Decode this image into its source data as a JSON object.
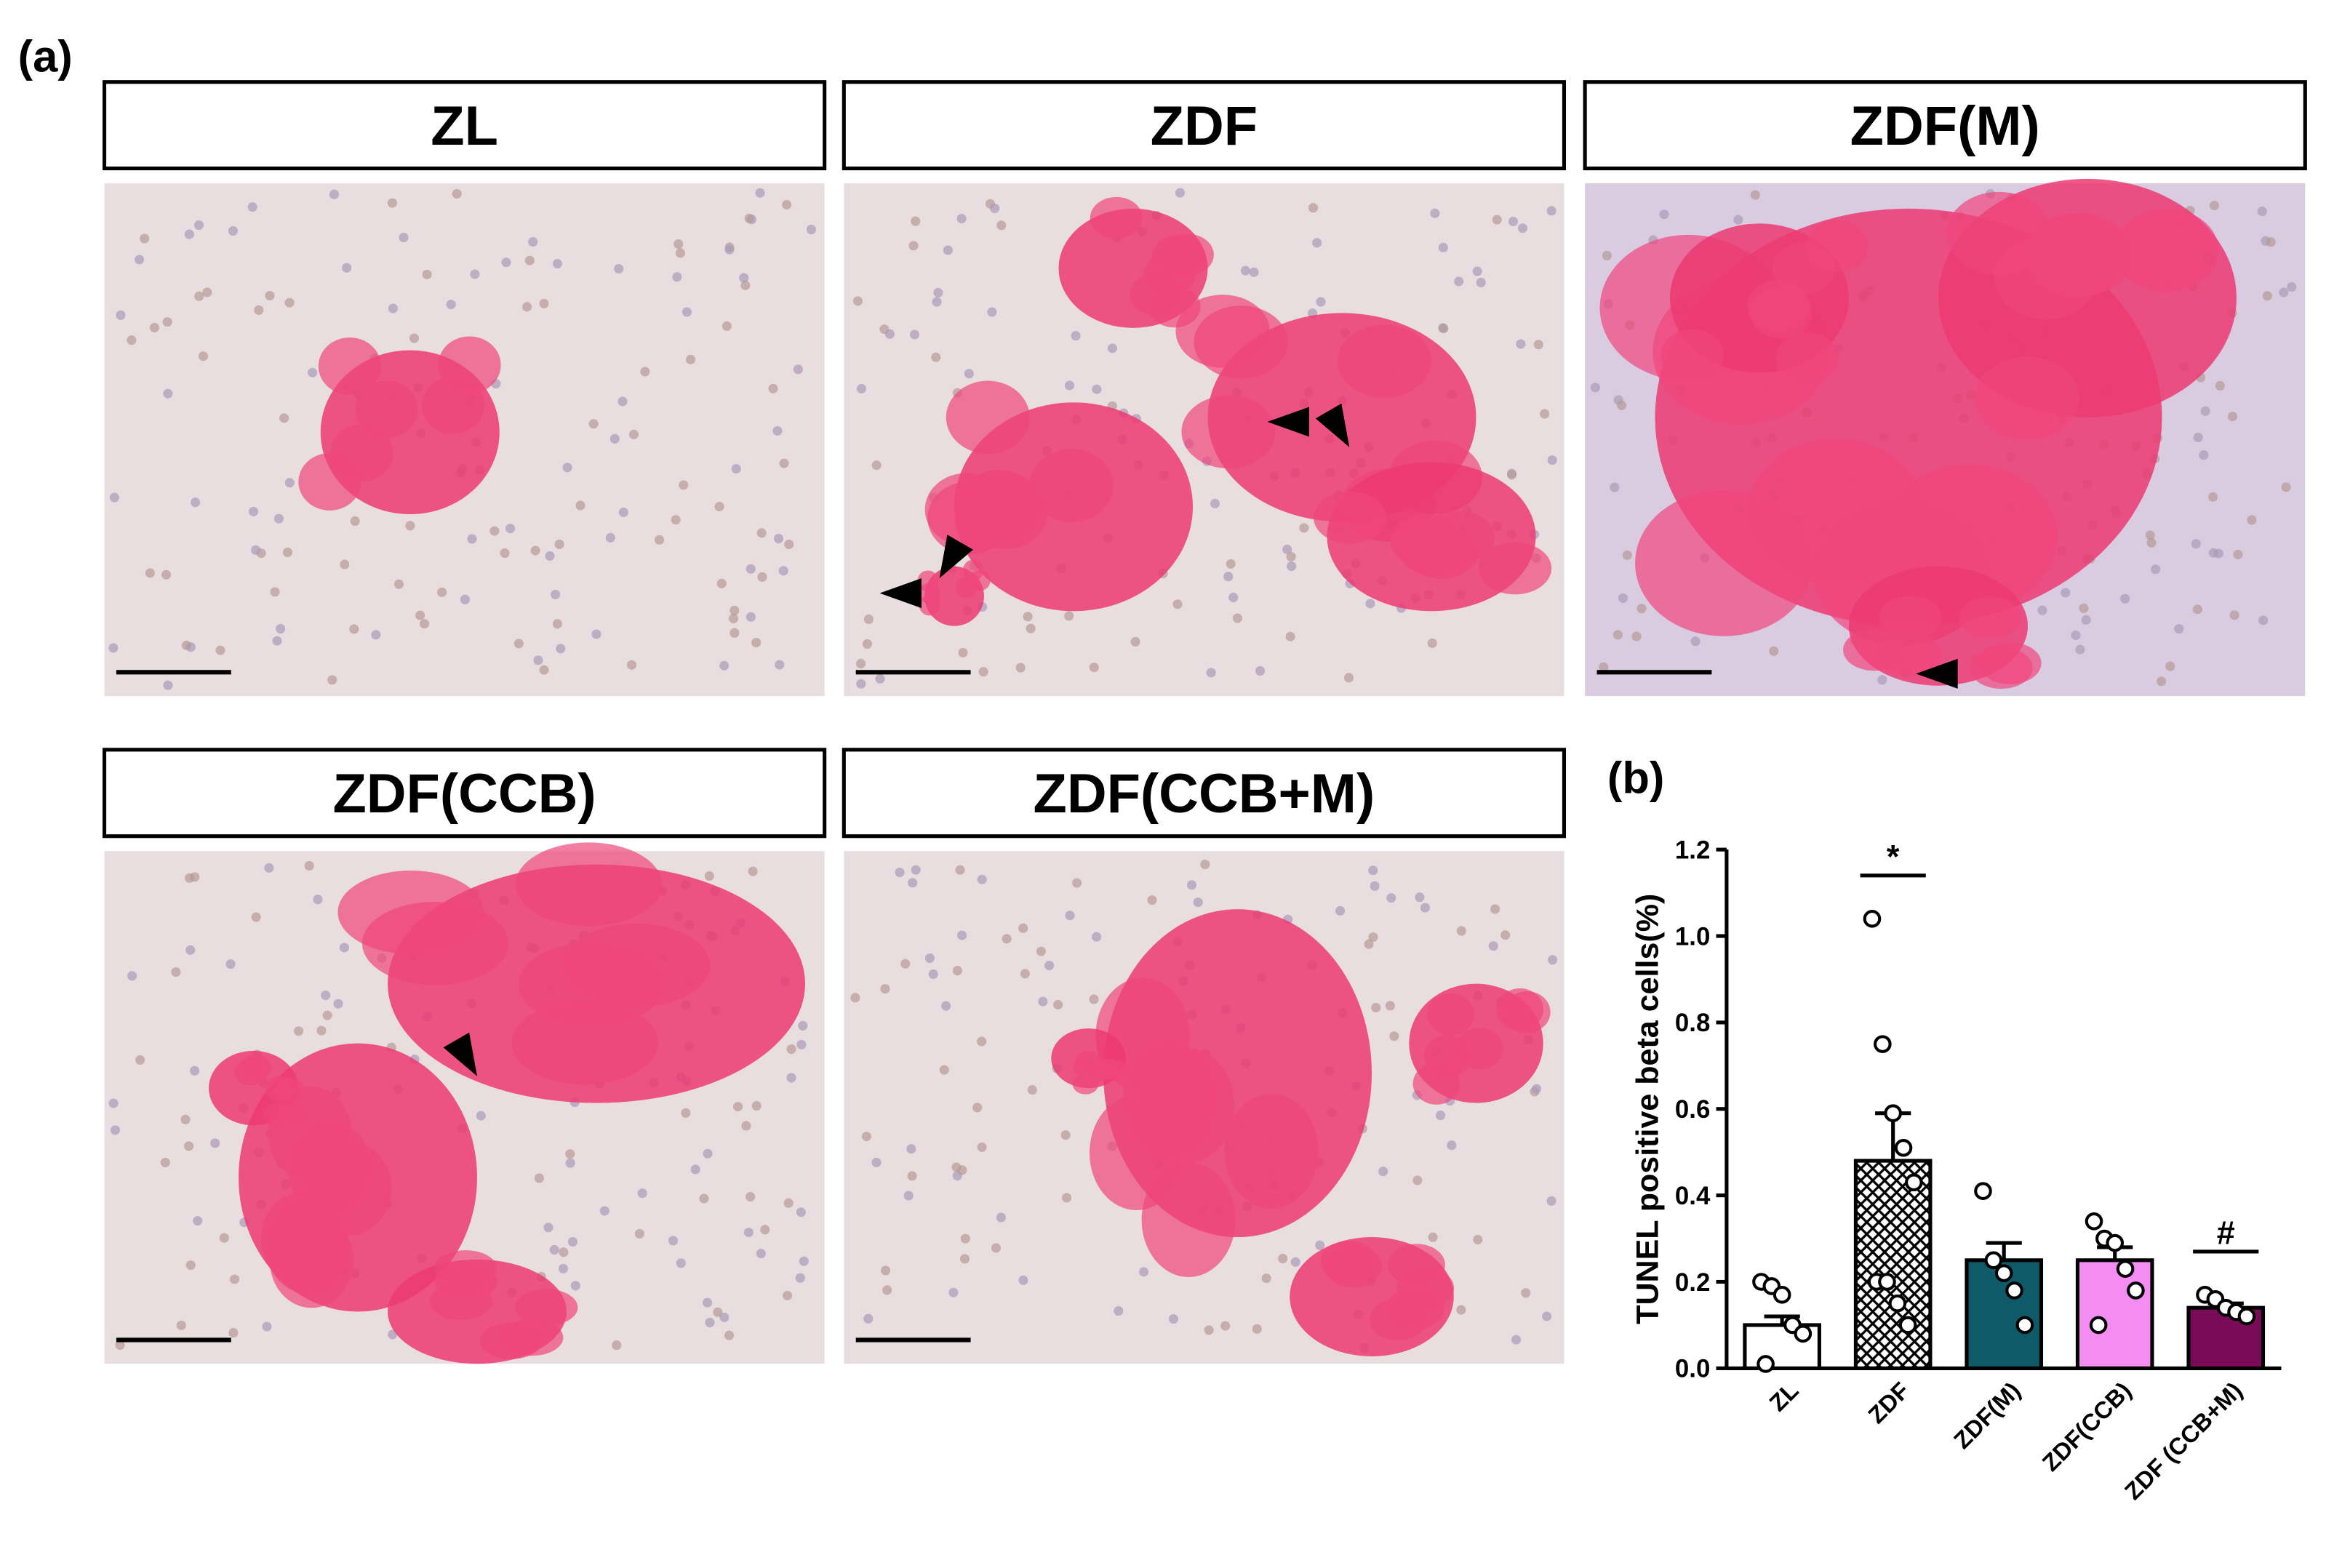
{
  "panel_a_label": "(a)",
  "panels": [
    {
      "title": "ZL"
    },
    {
      "title": "ZDF"
    },
    {
      "title": "ZDF(M)"
    },
    {
      "title": "ZDF(CCB)"
    },
    {
      "title": "ZDF(CCB+M)"
    }
  ],
  "panel_b_label": "(b)",
  "chart_data": {
    "type": "bar",
    "ylabel": "TUNEL positive beta cells(%)",
    "categories": [
      "ZL",
      "ZDF",
      "ZDF(M)",
      "ZDF(CCB)",
      "ZDF (CCB+M)"
    ],
    "values": [
      0.1,
      0.48,
      0.25,
      0.25,
      0.14
    ],
    "errors": [
      0.02,
      0.11,
      0.04,
      0.03,
      0.01
    ],
    "colors": [
      "#ffffff",
      "#ffffff",
      "#0e5a68",
      "#f58cf2",
      "#7a0b58"
    ],
    "hatched": [
      false,
      true,
      false,
      false,
      false
    ],
    "points": [
      [
        0.2,
        0.19,
        0.17,
        0.1,
        0.08,
        0.01
      ],
      [
        1.04,
        0.75,
        0.59,
        0.51,
        0.43,
        0.2,
        0.2,
        0.15,
        0.1
      ],
      [
        0.41,
        0.25,
        0.22,
        0.18,
        0.1
      ],
      [
        0.34,
        0.3,
        0.29,
        0.23,
        0.18,
        0.1
      ],
      [
        0.17,
        0.16,
        0.14,
        0.13,
        0.12
      ]
    ],
    "annotations": [
      {
        "text": "*",
        "category": "ZDF"
      },
      {
        "text": "#",
        "category": "ZDF (CCB+M)"
      }
    ],
    "ylim": [
      0,
      1.2
    ],
    "yticks": [
      {
        "value": 0,
        "label": "0.0"
      },
      {
        "value": 0.2,
        "label": "0.2"
      },
      {
        "value": 0.4,
        "label": "0.4"
      },
      {
        "value": 0.6,
        "label": "0.6"
      },
      {
        "value": 0.8,
        "label": "0.8"
      },
      {
        "value": 1,
        "label": "1.0"
      },
      {
        "value": 1.2,
        "label": "1.2"
      }
    ]
  }
}
